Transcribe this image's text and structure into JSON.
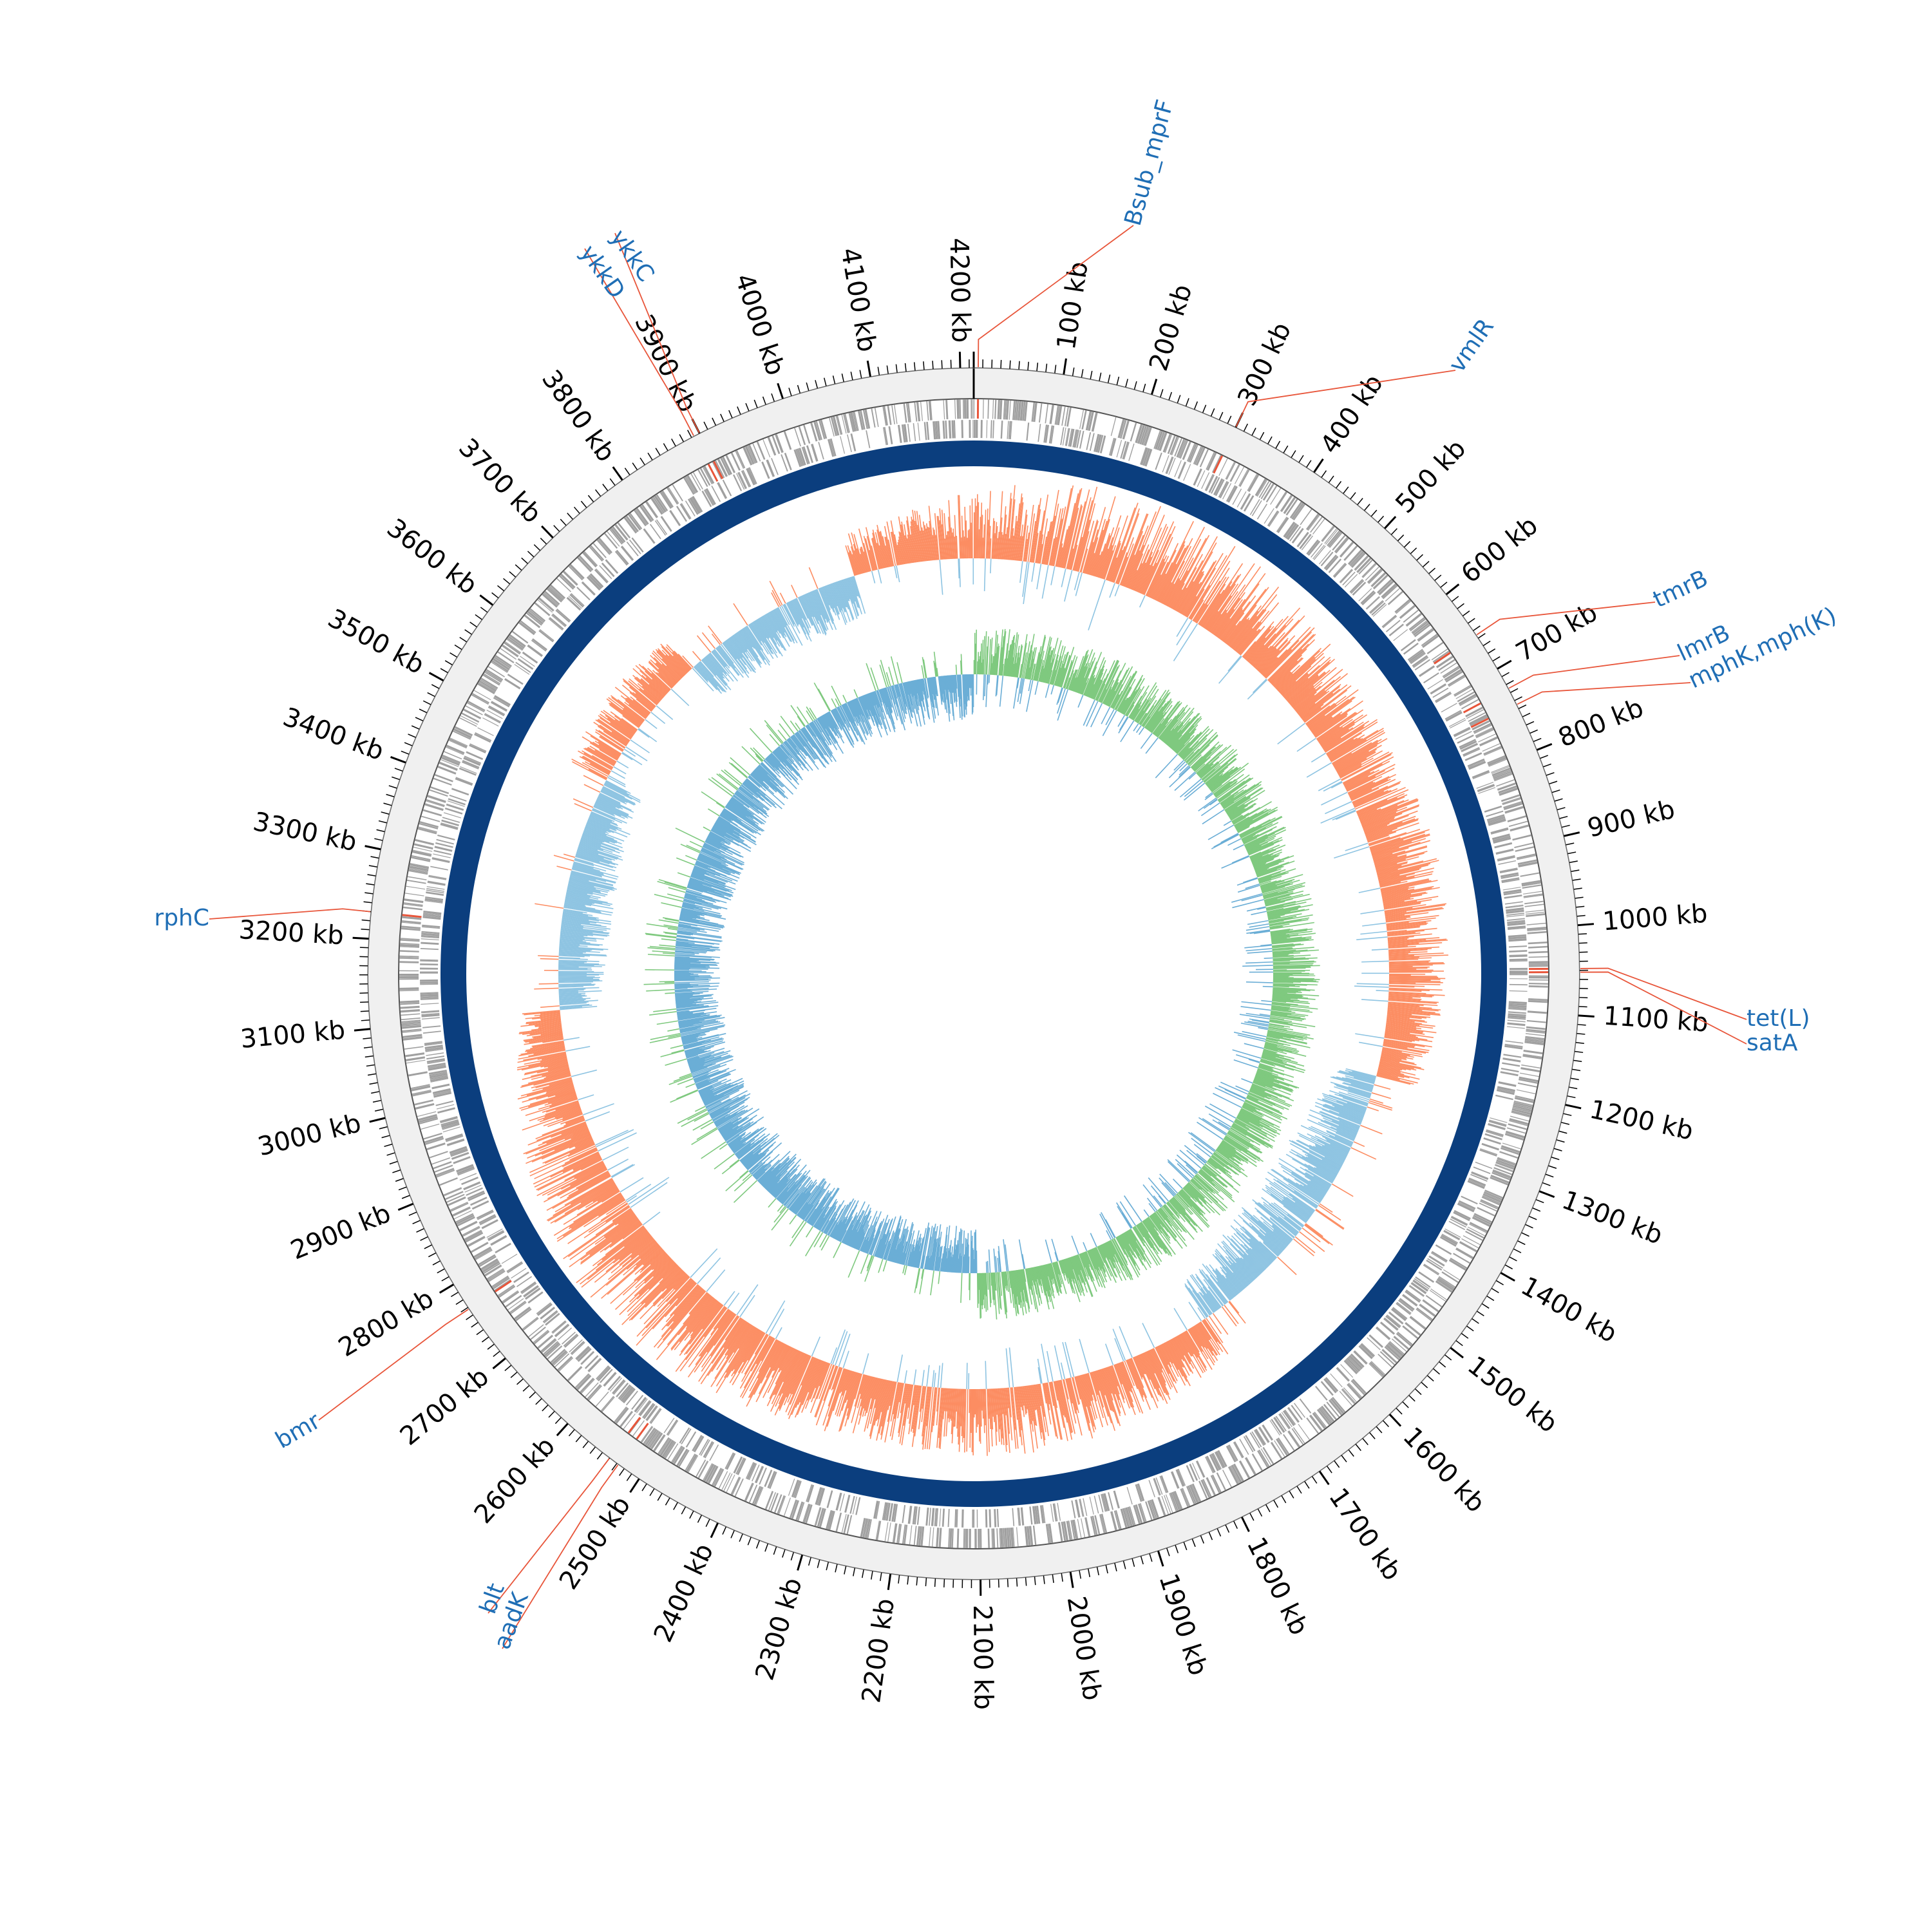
{
  "genome": {
    "length_kb": 4215,
    "tick_labels": [
      "100 kb",
      "200 kb",
      "300 kb",
      "400 kb",
      "500 kb",
      "600 kb",
      "700 kb",
      "800 kb",
      "900 kb",
      "1000 kb",
      "1100 kb",
      "1200 kb",
      "1300 kb",
      "1400 kb",
      "1500 kb",
      "1600 kb",
      "1700 kb",
      "1800 kb",
      "1900 kb",
      "2000 kb",
      "2100 kb",
      "2200 kb",
      "2300 kb",
      "2400 kb",
      "2500 kb",
      "2600 kb",
      "2700 kb",
      "2800 kb",
      "2900 kb",
      "3000 kb",
      "3100 kb",
      "3200 kb",
      "3300 kb",
      "3400 kb",
      "3500 kb",
      "3600 kb",
      "3700 kb",
      "3800 kb",
      "3900 kb",
      "4000 kb",
      "4100 kb",
      "4200 kb"
    ]
  },
  "genes": [
    {
      "name": "Bsub_mprF",
      "kb": 5
    },
    {
      "name": "vmlR",
      "kb": 300
    },
    {
      "name": "tmrB",
      "kb": 656
    },
    {
      "name": "lmrB",
      "kb": 725
    },
    {
      "name": "mphK,mph(K)",
      "kb": 745
    },
    {
      "name": "tet(L)",
      "kb": 1048
    },
    {
      "name": "satA",
      "kb": 1052
    },
    {
      "name": "aadK",
      "kb": 2528
    },
    {
      "name": "blt",
      "kb": 2540
    },
    {
      "name": "bmr",
      "kb": 2768
    },
    {
      "name": "rphC",
      "kb": 3230
    },
    {
      "name": "ykkD",
      "kb": 3893
    },
    {
      "name": "ykkC",
      "kb": 3900
    }
  ],
  "colors": {
    "label_blue": "#1f6eb5",
    "pointer_red": "#e8553a",
    "outer_ring_fill": "#f0f0f0",
    "outer_ring_stroke": "#666666",
    "cds_gray": "#a0a0a0",
    "cds_highlight": "#e8553a",
    "backbone": "#0b3e7e",
    "gc_content_pos": "#fc8d62",
    "gc_content_neg": "#8ec4e2",
    "gc_skew_pos": "#7fc97f",
    "gc_skew_neg": "#6baed6",
    "gc_line": "#6baed6"
  }
}
